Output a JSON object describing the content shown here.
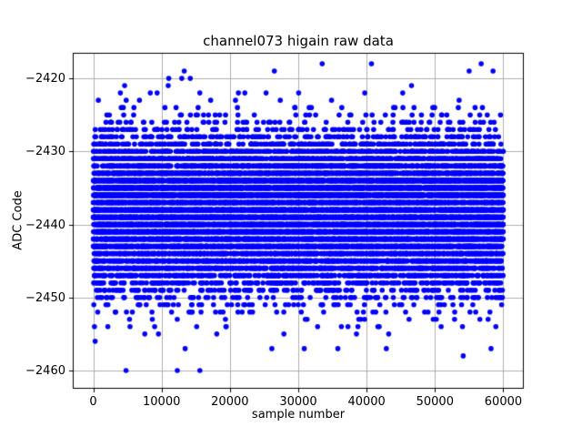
{
  "chart_data": {
    "type": "scatter",
    "title": "channel073 higain raw data",
    "xlabel": "sample number",
    "ylabel": "ADC Code",
    "x_ticks": [
      0,
      10000,
      20000,
      30000,
      40000,
      50000,
      60000
    ],
    "x_tick_labels": [
      "0",
      "10000",
      "20000",
      "30000",
      "40000",
      "50000",
      "60000"
    ],
    "y_ticks": [
      -2420,
      -2430,
      -2440,
      -2450,
      -2460
    ],
    "y_tick_labels": [
      "−2420",
      "−2430",
      "−2440",
      "−2450",
      "−2460"
    ],
    "xlim": [
      -3000,
      63000
    ],
    "ylim": [
      -2462.5,
      -2416.5
    ],
    "grid": true,
    "grid_color": "#b0b0b0",
    "frame_color": "#000000",
    "marker_color": "#0000ff",
    "background_color": "#ffffff",
    "n_samples": 60000,
    "y_distribution": {
      "type": "gaussian-integer-quantized",
      "mean": -2438.5,
      "std": 4.8,
      "tail_fraction": 0.012,
      "tail_std_scale": 1.55,
      "dense_band": [
        -2448,
        -2428
      ],
      "min": -2460,
      "max": -2418
    },
    "notable_points": [
      {
        "x": 33500,
        "y": -2418
      },
      {
        "x": 4800,
        "y": -2460
      },
      {
        "x": 26500,
        "y": -2419
      },
      {
        "x": 58500,
        "y": -2419
      }
    ],
    "seed": 73
  }
}
